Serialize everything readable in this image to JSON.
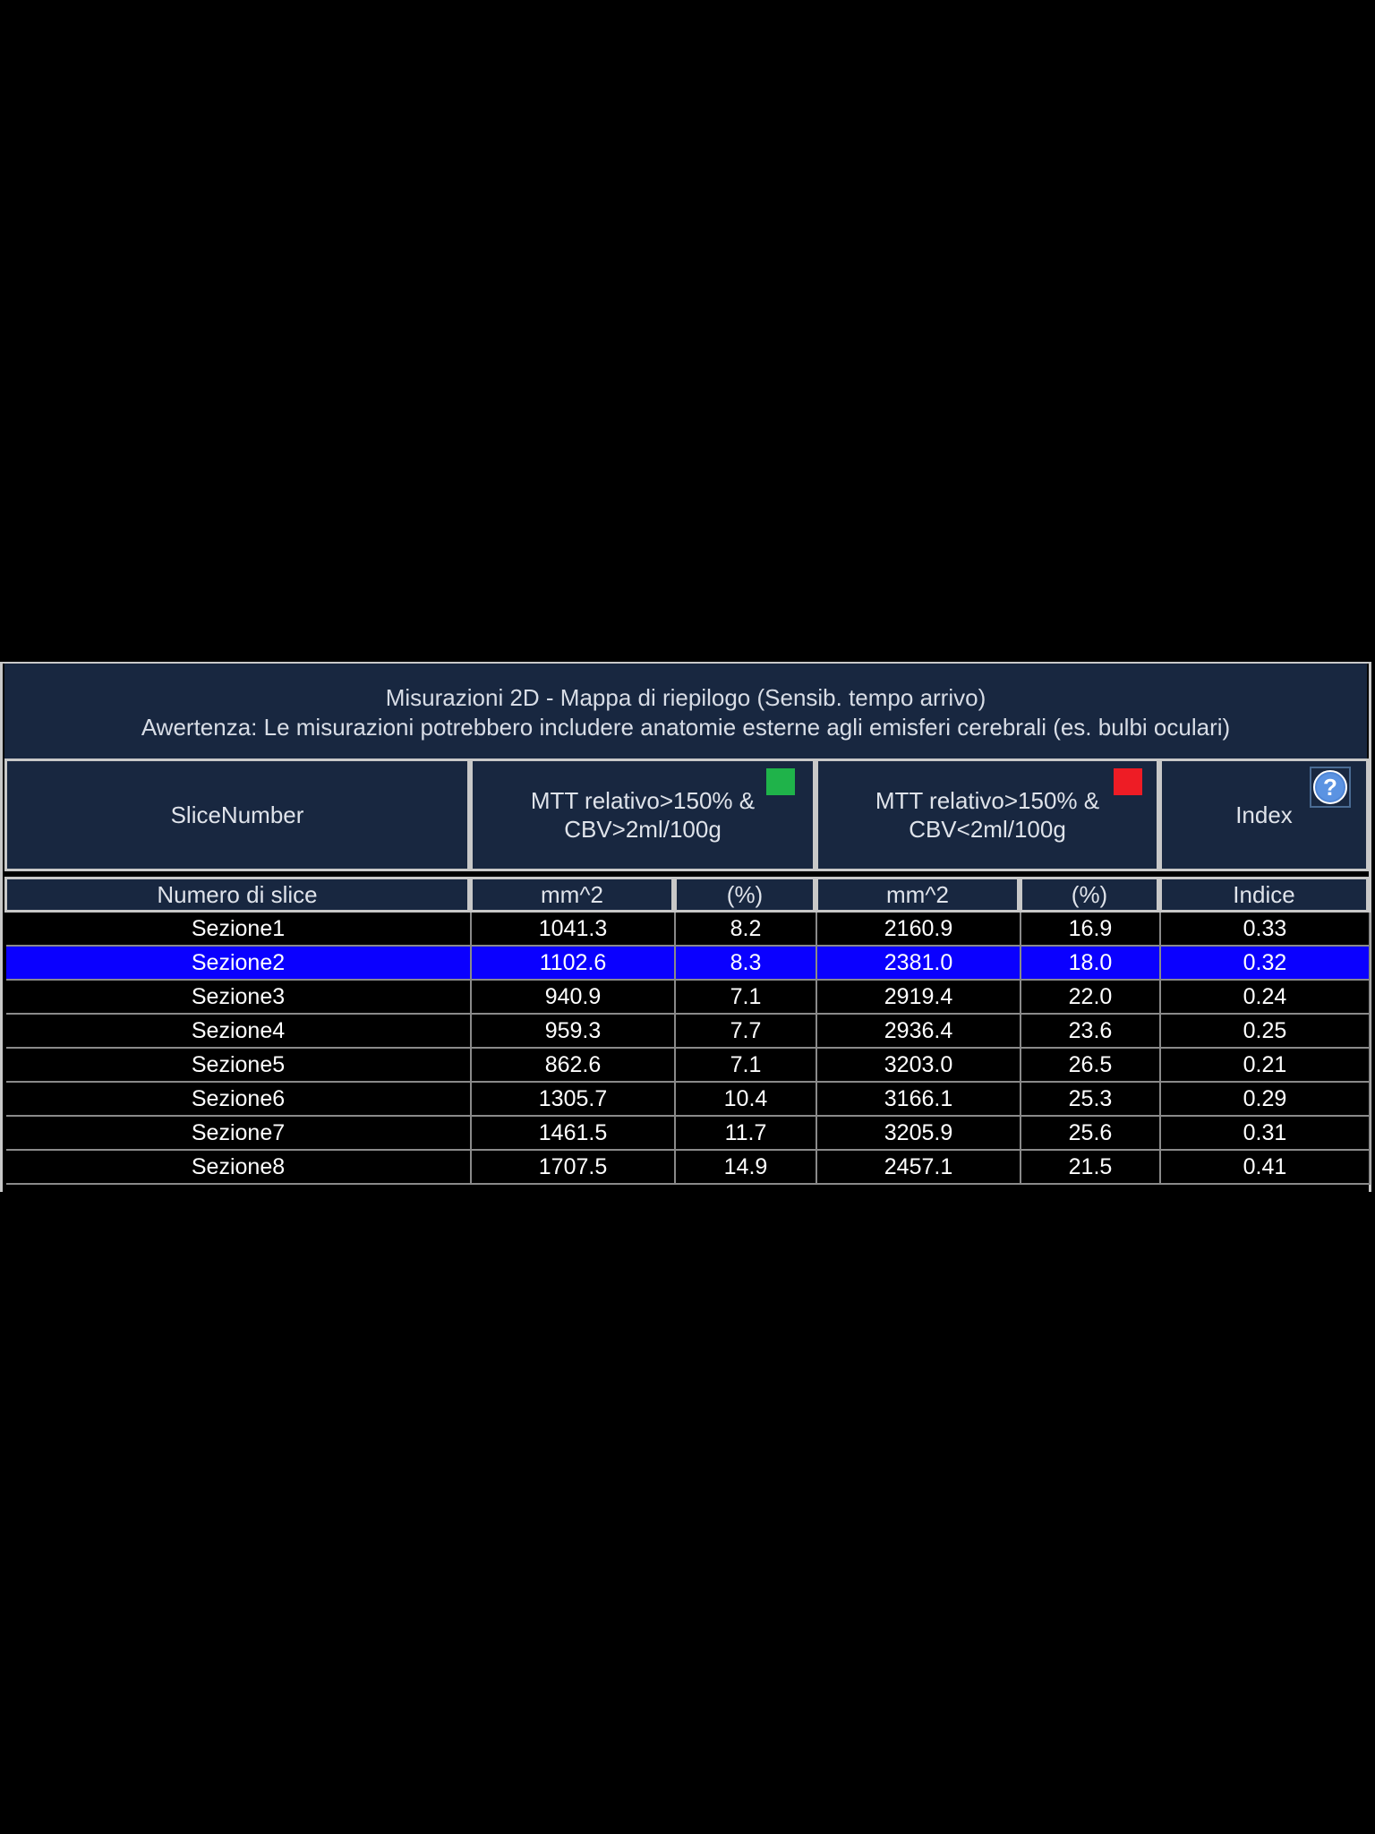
{
  "title": {
    "line1": "Misurazioni 2D - Mappa di riepilogo (Sensib. tempo arrivo)",
    "line2": "Awertenza: Le misurazioni potrebbero includere anatomie esterne agli emisferi cerebrali (es. bulbi oculari)"
  },
  "headers": {
    "slice": "SliceNumber",
    "group1_line1": "MTT relativo>150% &",
    "group1_line2": "CBV>2ml/100g",
    "group2_line1": "MTT relativo>150% &",
    "group2_line2": "CBV<2ml/100g",
    "index": "Index"
  },
  "colors": {
    "group1_swatch": "#1fb34a",
    "group2_swatch": "#ee1c25",
    "selected_row": "#0a00ff"
  },
  "icons": {
    "help": "question-mark-help-icon"
  },
  "subheaders": {
    "slice": "Numero di slice",
    "g1_area": "mm^2",
    "g1_pct": "(%)",
    "g2_area": "mm^2",
    "g2_pct": "(%)",
    "index": "Indice"
  },
  "rows": [
    {
      "name": "Sezione1",
      "g1_area": "1041.3",
      "g1_pct": "8.2",
      "g2_area": "2160.9",
      "g2_pct": "16.9",
      "index": "0.33",
      "selected": false
    },
    {
      "name": "Sezione2",
      "g1_area": "1102.6",
      "g1_pct": "8.3",
      "g2_area": "2381.0",
      "g2_pct": "18.0",
      "index": "0.32",
      "selected": true
    },
    {
      "name": "Sezione3",
      "g1_area": "940.9",
      "g1_pct": "7.1",
      "g2_area": "2919.4",
      "g2_pct": "22.0",
      "index": "0.24",
      "selected": false
    },
    {
      "name": "Sezione4",
      "g1_area": "959.3",
      "g1_pct": "7.7",
      "g2_area": "2936.4",
      "g2_pct": "23.6",
      "index": "0.25",
      "selected": false
    },
    {
      "name": "Sezione5",
      "g1_area": "862.6",
      "g1_pct": "7.1",
      "g2_area": "3203.0",
      "g2_pct": "26.5",
      "index": "0.21",
      "selected": false
    },
    {
      "name": "Sezione6",
      "g1_area": "1305.7",
      "g1_pct": "10.4",
      "g2_area": "3166.1",
      "g2_pct": "25.3",
      "index": "0.29",
      "selected": false
    },
    {
      "name": "Sezione7",
      "g1_area": "1461.5",
      "g1_pct": "11.7",
      "g2_area": "3205.9",
      "g2_pct": "25.6",
      "index": "0.31",
      "selected": false
    },
    {
      "name": "Sezione8",
      "g1_area": "1707.5",
      "g1_pct": "14.9",
      "g2_area": "2457.1",
      "g2_pct": "21.5",
      "index": "0.41",
      "selected": false
    }
  ]
}
